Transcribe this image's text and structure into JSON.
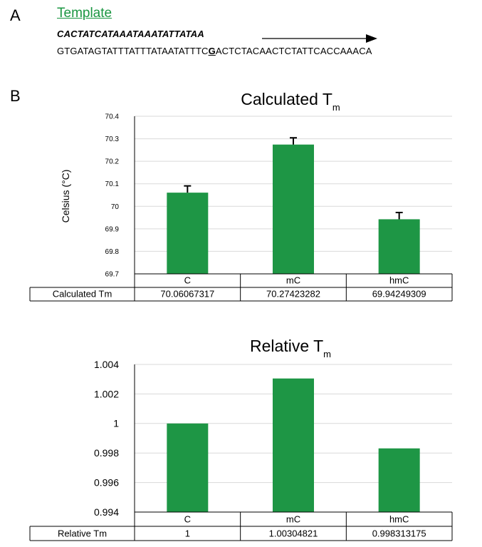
{
  "panel_a": {
    "letter": "A",
    "title": "Template",
    "primer": "CACTATCATAAATAAATATTATAA",
    "template_before": "GTGATAGTATTTATTTATAATATTTC",
    "template_mark": "G",
    "template_after": "ACTCTACAACTCTATTCACCAAACA"
  },
  "panel_b": {
    "letter": "B"
  },
  "colors": {
    "bar": "#1e9645",
    "title": "#2ca04c",
    "grid": "#d9d9d9",
    "axis": "#000000"
  },
  "chart_data": [
    {
      "type": "bar",
      "title": "Calculated T",
      "title_sub": "m",
      "ylabel": "Celsius (°C)",
      "xlabel": "",
      "ylim": [
        69.7,
        70.4
      ],
      "yticks": [
        69.7,
        69.8,
        69.9,
        70,
        70.1,
        70.2,
        70.3,
        70.4
      ],
      "ytick_labels": [
        "69.7",
        "69.8",
        "69.9",
        "70",
        "70.1",
        "70.2",
        "70.3",
        "70.4"
      ],
      "categories": [
        "C",
        "mC",
        "hmC"
      ],
      "values": [
        70.06067317,
        70.27423282,
        69.94249309
      ],
      "error_bars": [
        0.03,
        0.03,
        0.03
      ],
      "grid": true,
      "legend": "none",
      "table": {
        "row_label": "Calculated Tm",
        "values": [
          "70.06067317",
          "70.27423282",
          "69.94249309"
        ]
      }
    },
    {
      "type": "bar",
      "title": "Relative T",
      "title_sub": "m",
      "ylabel": "",
      "xlabel": "",
      "ylim": [
        0.994,
        1.004
      ],
      "yticks": [
        0.994,
        0.996,
        0.998,
        1,
        1.002,
        1.004
      ],
      "ytick_labels": [
        "0.994",
        "0.996",
        "0.998",
        "1",
        "1.002",
        "1.004"
      ],
      "categories": [
        "C",
        "mC",
        "hmC"
      ],
      "values": [
        1,
        1.00304821,
        0.998313175
      ],
      "grid": true,
      "legend": "none",
      "table": {
        "row_label": "Relative Tm",
        "values": [
          "1",
          "1.00304821",
          "0.998313175"
        ]
      }
    }
  ]
}
